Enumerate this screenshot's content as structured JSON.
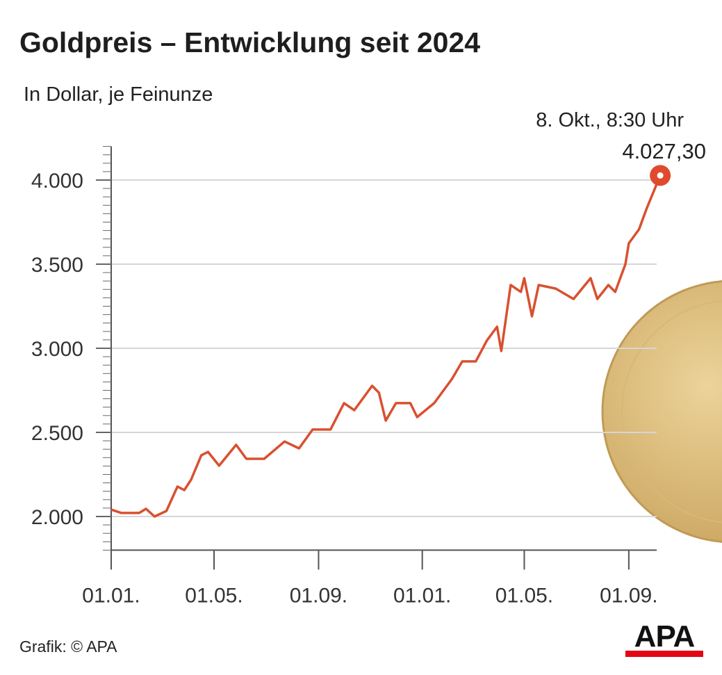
{
  "chart_data": {
    "type": "line",
    "title": "Goldpreis – Entwicklung seit 2024",
    "subtitle": "In Dollar, je Feinunze",
    "xlabel": "",
    "ylabel": "",
    "x_unit": "days since 01.01.2024",
    "ylim": [
      1800,
      4200
    ],
    "xlim": [
      0,
      650
    ],
    "grid": true,
    "y_ticks": [
      2000,
      2500,
      3000,
      3500,
      4000
    ],
    "y_tick_labels": [
      "2.000",
      "2.500",
      "3.000",
      "3.500",
      "4.000"
    ],
    "x_ticks": [
      0,
      121,
      244,
      366,
      486,
      609
    ],
    "x_tick_labels": [
      "01.01.",
      "01.05.",
      "01.09.",
      "01.01.",
      "01.05.",
      "01.09."
    ],
    "series": [
      {
        "name": "Goldpreis",
        "color": "#d9502f",
        "x": [
          0,
          12,
          33,
          41,
          51,
          65,
          78,
          86,
          94,
          106,
          114,
          127,
          147,
          159,
          180,
          204,
          221,
          237,
          258,
          274,
          286,
          307,
          315,
          323,
          335,
          352,
          360,
          380,
          401,
          413,
          429,
          442,
          454,
          459,
          470,
          482,
          486,
          495,
          503,
          523,
          544,
          564,
          572,
          585,
          593,
          605,
          609,
          621,
          630,
          646
        ],
        "y": [
          2041,
          2021,
          2021,
          2046,
          2000,
          2033,
          2178,
          2157,
          2219,
          2364,
          2384,
          2302,
          2426,
          2343,
          2343,
          2446,
          2405,
          2517,
          2517,
          2674,
          2632,
          2777,
          2736,
          2570,
          2674,
          2674,
          2591,
          2674,
          2818,
          2922,
          2922,
          3046,
          3128,
          2984,
          3376,
          3335,
          3417,
          3190,
          3376,
          3355,
          3293,
          3417,
          3293,
          3376,
          3335,
          3500,
          3624,
          3707,
          3831,
          4027
        ]
      }
    ],
    "annotation": {
      "label": "8. Okt., 8:30 Uhr",
      "value_label": "4.027,30",
      "x": 646,
      "y": 4027.3
    }
  },
  "footer": {
    "credit": "Grafik: © APA",
    "logo_text": "APA"
  }
}
